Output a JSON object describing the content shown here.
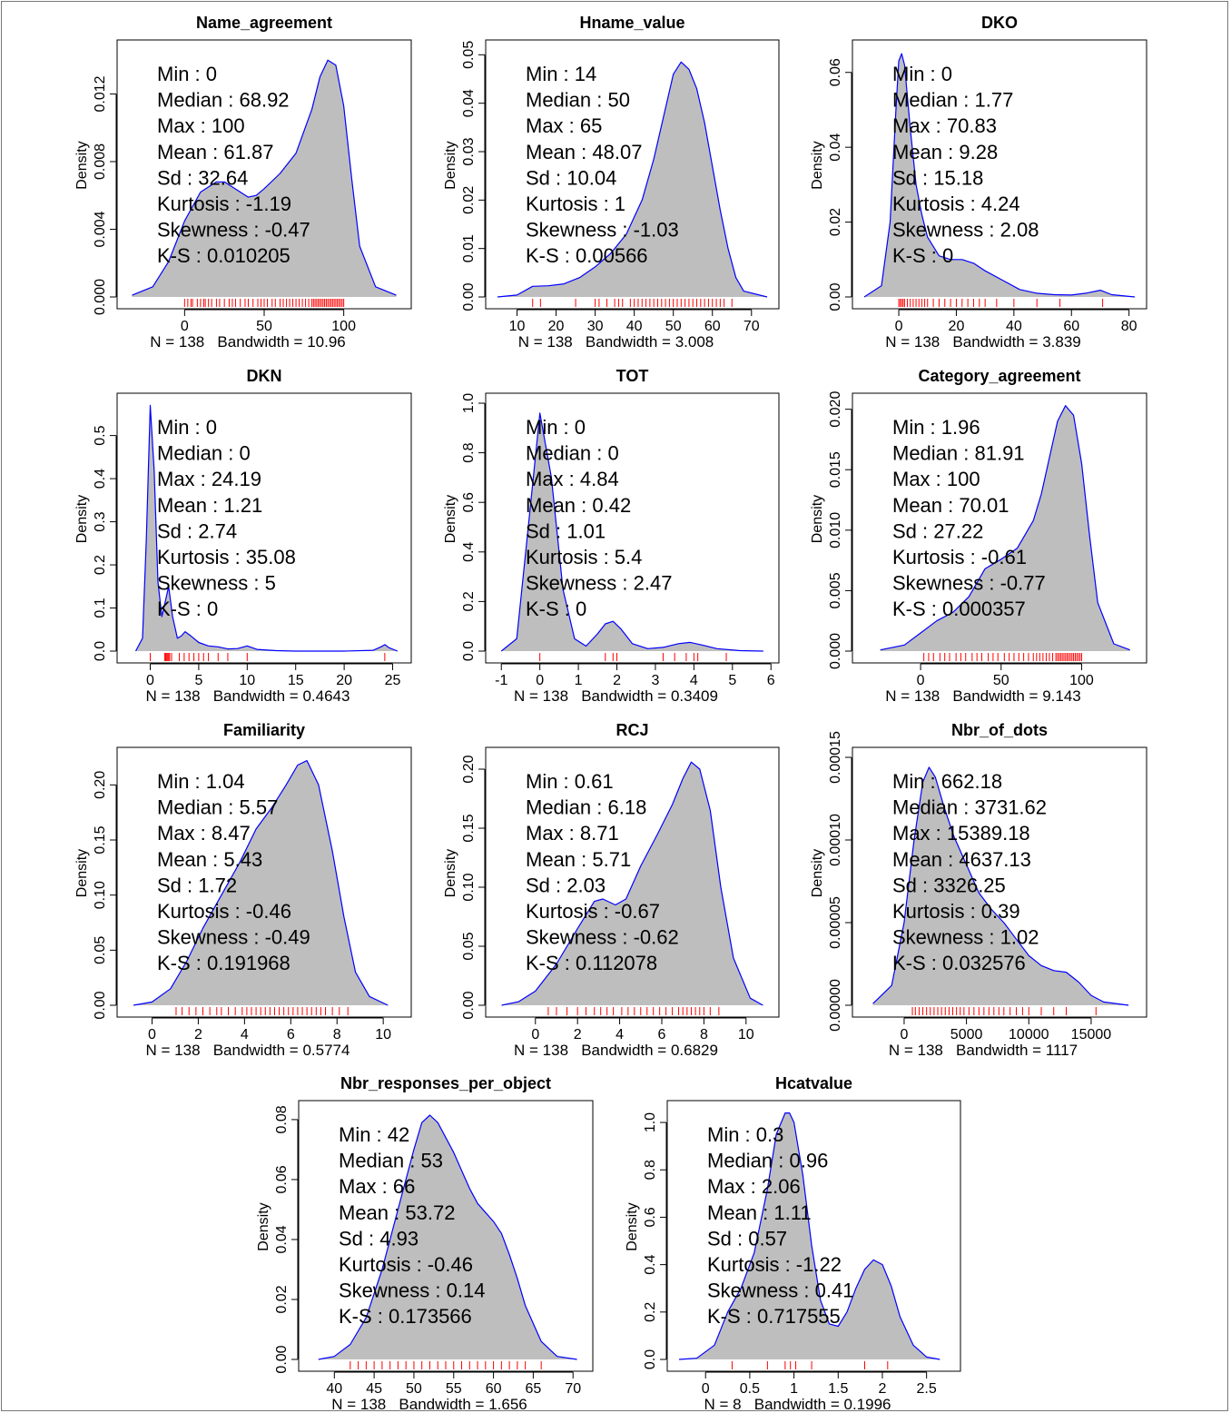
{
  "figure": {
    "ylabel": "Density",
    "stat_labels": [
      "Min",
      "Median",
      "Max",
      "Mean",
      "Sd",
      "Kurtosis",
      "Skewness",
      "K-S"
    ]
  },
  "colors": {
    "fill": "#bebebe",
    "line": "#0000ff",
    "rug": "#ff0000",
    "axis": "#000000"
  },
  "chart_data": [
    {
      "type": "area",
      "title": "Name_agreement",
      "footer": "N = 138   Bandwidth = 10.96",
      "xlim": [
        -35,
        135
      ],
      "ylim": [
        0,
        0.0146
      ],
      "xticks": [
        0,
        50,
        100
      ],
      "yticks": [
        0.0,
        0.004,
        0.008,
        0.012
      ],
      "ytick_labels": [
        "0.000",
        "0.004",
        "0.008",
        "0.012"
      ],
      "stats": [
        "0",
        "68.92",
        "100",
        "61.87",
        "32.64",
        "-1.19",
        "-0.47",
        "0.010205"
      ],
      "x": [
        -33,
        -20,
        -10,
        0,
        10,
        20,
        25,
        30,
        40,
        45,
        50,
        60,
        70,
        80,
        85,
        90,
        95,
        100,
        105,
        110,
        120,
        133
      ],
      "y": [
        0.0001,
        0.0006,
        0.0021,
        0.0045,
        0.0062,
        0.0068,
        0.0068,
        0.0065,
        0.0059,
        0.006,
        0.0064,
        0.0073,
        0.0085,
        0.0111,
        0.013,
        0.014,
        0.0137,
        0.0113,
        0.007,
        0.003,
        0.0006,
        0.0001
      ],
      "rug": [
        0,
        2,
        4,
        5,
        8,
        10,
        12,
        13,
        15,
        17,
        20,
        22,
        25,
        28,
        30,
        32,
        35,
        38,
        40,
        43,
        46,
        48,
        50,
        52,
        55,
        57,
        60,
        62,
        64,
        66,
        68,
        70,
        72,
        74,
        76,
        78,
        80,
        81,
        82,
        83,
        84,
        85,
        86,
        87,
        88,
        89,
        90,
        91,
        92,
        93,
        94,
        95,
        96,
        97,
        98,
        99,
        100
      ]
    },
    {
      "type": "area",
      "title": "Hname_value",
      "footer": "N = 138   Bandwidth = 3.008",
      "xlim": [
        5,
        74
      ],
      "ylim": [
        0,
        0.051
      ],
      "xticks": [
        10,
        20,
        30,
        40,
        50,
        60,
        70
      ],
      "yticks": [
        0.0,
        0.01,
        0.02,
        0.03,
        0.04,
        0.05
      ],
      "ytick_labels": [
        "0.00",
        "0.01",
        "0.02",
        "0.03",
        "0.04",
        "0.05"
      ],
      "stats": [
        "14",
        "50",
        "65",
        "48.07",
        "10.04",
        "1",
        "-1.03",
        "0.00566"
      ],
      "x": [
        5,
        10,
        14,
        18,
        22,
        26,
        30,
        34,
        38,
        42,
        45,
        48,
        50,
        52,
        54,
        56,
        58,
        60,
        62,
        64,
        66,
        68,
        74
      ],
      "y": [
        0.0,
        0.0004,
        0.0022,
        0.0023,
        0.0027,
        0.004,
        0.0062,
        0.009,
        0.013,
        0.02,
        0.0285,
        0.039,
        0.046,
        0.0485,
        0.047,
        0.043,
        0.036,
        0.027,
        0.018,
        0.01,
        0.004,
        0.0012,
        0.0
      ],
      "rug": [
        14,
        16,
        25,
        30,
        31,
        33,
        35,
        36,
        37,
        39,
        40,
        41,
        42,
        43,
        44,
        45,
        46,
        47,
        48,
        49,
        50,
        51,
        52,
        53,
        54,
        55,
        56,
        57,
        58,
        59,
        60,
        61,
        62,
        63,
        65
      ]
    },
    {
      "type": "area",
      "title": "DKO",
      "footer": "N = 138   Bandwidth = 3.839",
      "xlim": [
        -12,
        82
      ],
      "ylim": [
        0,
        0.066
      ],
      "xticks": [
        0,
        20,
        40,
        60,
        80
      ],
      "yticks": [
        0.0,
        0.02,
        0.04,
        0.06
      ],
      "ytick_labels": [
        "0.00",
        "0.02",
        "0.04",
        "0.06"
      ],
      "stats": [
        "0",
        "1.77",
        "70.83",
        "9.28",
        "15.18",
        "4.24",
        "2.08",
        "0"
      ],
      "x": [
        -12,
        -6,
        -3,
        -1,
        0,
        1,
        2,
        4,
        6,
        8,
        10,
        14,
        18,
        22,
        26,
        30,
        36,
        42,
        48,
        54,
        60,
        65,
        70,
        74,
        82
      ],
      "y": [
        0.0,
        0.003,
        0.02,
        0.05,
        0.063,
        0.065,
        0.062,
        0.045,
        0.03,
        0.022,
        0.016,
        0.011,
        0.01,
        0.01,
        0.009,
        0.007,
        0.0045,
        0.002,
        0.001,
        0.0006,
        0.0005,
        0.001,
        0.0018,
        0.0006,
        0.0
      ],
      "rug": [
        0,
        0.5,
        1,
        1.5,
        2,
        3,
        4,
        5,
        6,
        7,
        8,
        9,
        10,
        12,
        14,
        16,
        18,
        20,
        22,
        24,
        26,
        28,
        30,
        34,
        40,
        48,
        56,
        70.83
      ]
    },
    {
      "type": "area",
      "title": "DKN",
      "footer": "N = 138   Bandwidth = 0.4643",
      "xlim": [
        -2.2,
        25.7
      ],
      "ylim": [
        0,
        0.575
      ],
      "xticks": [
        0,
        5,
        10,
        15,
        20,
        25
      ],
      "yticks": [
        0.0,
        0.1,
        0.2,
        0.3,
        0.4,
        0.5
      ],
      "ytick_labels": [
        "0.0",
        "0.1",
        "0.2",
        "0.3",
        "0.4",
        "0.5"
      ],
      "stats": [
        "0",
        "0",
        "24.19",
        "1.21",
        "2.74",
        "35.08",
        "5",
        "0"
      ],
      "x": [
        -1.5,
        -0.8,
        -0.4,
        0,
        0.4,
        0.8,
        1.2,
        1.6,
        1.9,
        2.3,
        2.8,
        3.2,
        3.6,
        4.2,
        5,
        6,
        7,
        8,
        9,
        10,
        11,
        13,
        15,
        20,
        23,
        23.8,
        24.2,
        24.6,
        25.5
      ],
      "y": [
        0.0,
        0.03,
        0.26,
        0.57,
        0.42,
        0.16,
        0.08,
        0.12,
        0.15,
        0.08,
        0.03,
        0.035,
        0.045,
        0.035,
        0.02,
        0.012,
        0.01,
        0.005,
        0.006,
        0.012,
        0.004,
        0.001,
        0.0,
        0.0,
        0.002,
        0.01,
        0.015,
        0.008,
        0.0
      ],
      "rug": [
        0,
        1.5,
        1.6,
        1.7,
        1.8,
        1.9,
        2.0,
        2.2,
        3,
        3.5,
        4,
        4.5,
        5,
        5.5,
        6,
        7,
        8,
        10,
        24.19
      ]
    },
    {
      "type": "area",
      "title": "TOT",
      "footer": "N = 138   Bandwidth = 0.3409",
      "xlim": [
        -1.1,
        5.9
      ],
      "ylim": [
        0,
        1.0
      ],
      "xticks": [
        -1,
        0,
        1,
        2,
        3,
        4,
        5,
        6
      ],
      "yticks": [
        0.0,
        0.2,
        0.4,
        0.6,
        0.8,
        1.0
      ],
      "ytick_labels": [
        "0.0",
        "0.2",
        "0.4",
        "0.6",
        "0.8",
        "1.0"
      ],
      "stats": [
        "0",
        "0",
        "4.84",
        "0.42",
        "1.01",
        "5.4",
        "2.47",
        "0"
      ],
      "x": [
        -1.0,
        -0.6,
        -0.3,
        0,
        0.3,
        0.6,
        0.9,
        1.2,
        1.5,
        1.7,
        1.9,
        2.1,
        2.4,
        2.8,
        3.2,
        3.6,
        3.9,
        4.2,
        4.6,
        5.2,
        5.8
      ],
      "y": [
        0.0,
        0.05,
        0.5,
        0.96,
        0.7,
        0.25,
        0.05,
        0.02,
        0.07,
        0.11,
        0.12,
        0.09,
        0.03,
        0.01,
        0.015,
        0.03,
        0.035,
        0.025,
        0.01,
        0.002,
        0.0
      ],
      "rug": [
        0,
        1.7,
        1.9,
        2.0,
        3.2,
        3.5,
        3.8,
        4.0,
        4.1,
        4.84
      ]
    },
    {
      "type": "area",
      "title": "Category_agreement",
      "footer": "N = 138   Bandwidth = 9.143",
      "xlim": [
        -35,
        133
      ],
      "ylim": [
        0,
        0.0205
      ],
      "xticks": [
        0,
        50,
        100
      ],
      "yticks": [
        0.0,
        0.005,
        0.01,
        0.015,
        0.02
      ],
      "ytick_labels": [
        "0.000",
        "0.005",
        "0.010",
        "0.015",
        "0.020"
      ],
      "stats": [
        "1.96",
        "81.91",
        "100",
        "70.01",
        "27.22",
        "-0.61",
        "-0.77",
        "0.000357"
      ],
      "x": [
        -25,
        -10,
        0,
        10,
        20,
        30,
        40,
        50,
        60,
        70,
        75,
        80,
        85,
        90,
        95,
        100,
        105,
        110,
        120,
        130
      ],
      "y": [
        0.0001,
        0.0005,
        0.0015,
        0.0025,
        0.0032,
        0.0045,
        0.0068,
        0.0076,
        0.0085,
        0.0108,
        0.013,
        0.016,
        0.019,
        0.0203,
        0.0195,
        0.0155,
        0.0095,
        0.004,
        0.0006,
        0.0001
      ],
      "rug": [
        2,
        5,
        8,
        12,
        15,
        18,
        22,
        25,
        28,
        32,
        35,
        38,
        42,
        45,
        48,
        52,
        55,
        58,
        61,
        64,
        67,
        70,
        72,
        74,
        76,
        78,
        80,
        82,
        84,
        85,
        86,
        87,
        88,
        89,
        90,
        91,
        92,
        93,
        94,
        95,
        96,
        97,
        98,
        99,
        100
      ]
    },
    {
      "type": "area",
      "title": "Familiarity",
      "footer": "N = 138   Bandwidth = 0.5774",
      "xlim": [
        -1.0,
        10.7
      ],
      "ylim": [
        0,
        0.225
      ],
      "xticks": [
        0,
        2,
        4,
        6,
        8,
        10
      ],
      "yticks": [
        0.0,
        0.05,
        0.1,
        0.15,
        0.2
      ],
      "ytick_labels": [
        "0.00",
        "0.05",
        "0.10",
        "0.15",
        "0.20"
      ],
      "stats": [
        "1.04",
        "5.57",
        "8.47",
        "5.43",
        "1.72",
        "-0.46",
        "-0.49",
        "0.191968"
      ],
      "x": [
        -0.8,
        0,
        0.8,
        1.5,
        2.2,
        3,
        3.8,
        4.5,
        5.2,
        5.8,
        6.3,
        6.7,
        7.2,
        7.8,
        8.3,
        8.8,
        9.4,
        10.2
      ],
      "y": [
        0.0,
        0.003,
        0.015,
        0.04,
        0.07,
        0.1,
        0.13,
        0.16,
        0.18,
        0.2,
        0.218,
        0.222,
        0.2,
        0.14,
        0.08,
        0.03,
        0.008,
        0.0
      ],
      "rug": [
        1.04,
        1.3,
        1.6,
        1.9,
        2.2,
        2.5,
        2.8,
        3.0,
        3.3,
        3.6,
        3.9,
        4.1,
        4.3,
        4.5,
        4.7,
        4.9,
        5.1,
        5.3,
        5.5,
        5.7,
        5.9,
        6.1,
        6.3,
        6.5,
        6.7,
        6.9,
        7.1,
        7.3,
        7.5,
        7.8,
        8.1,
        8.47
      ]
    },
    {
      "type": "area",
      "title": "RCJ",
      "footer": "N = 138   Bandwidth = 0.6829",
      "xlim": [
        -1.8,
        11.0
      ],
      "ylim": [
        0,
        0.21
      ],
      "xticks": [
        0,
        2,
        4,
        6,
        8,
        10
      ],
      "yticks": [
        0.0,
        0.05,
        0.1,
        0.15,
        0.2
      ],
      "ytick_labels": [
        "0.00",
        "0.05",
        "0.10",
        "0.15",
        "0.20"
      ],
      "stats": [
        "0.61",
        "6.18",
        "8.71",
        "5.71",
        "2.03",
        "-0.67",
        "-0.62",
        "0.112078"
      ],
      "x": [
        -1.6,
        -0.8,
        0,
        1,
        2,
        2.8,
        3.2,
        3.8,
        4.3,
        5,
        5.8,
        6.5,
        7.0,
        7.4,
        7.8,
        8.3,
        8.8,
        9.4,
        10.2,
        10.8
      ],
      "y": [
        0.0,
        0.003,
        0.012,
        0.035,
        0.065,
        0.088,
        0.09,
        0.085,
        0.09,
        0.118,
        0.145,
        0.17,
        0.192,
        0.206,
        0.2,
        0.165,
        0.1,
        0.04,
        0.006,
        0.0
      ],
      "rug": [
        0.61,
        1,
        1.5,
        2,
        2.4,
        2.8,
        3.1,
        3.4,
        3.7,
        4.1,
        4.4,
        4.7,
        5.0,
        5.3,
        5.6,
        5.9,
        6.2,
        6.5,
        6.8,
        7.0,
        7.2,
        7.4,
        7.6,
        7.8,
        8.0,
        8.3,
        8.71
      ]
    },
    {
      "type": "area",
      "title": "Nbr_of_dots",
      "footer": "N = 138   Bandwidth = 1117",
      "xlim": [
        -3200,
        18500
      ],
      "ylim": [
        0,
        0.00015
      ],
      "xticks": [
        0,
        5000,
        10000,
        15000
      ],
      "yticks": [
        0,
        5e-05,
        0.0001,
        0.00015
      ],
      "ytick_labels": [
        "0.00000",
        "0.00005",
        "0.00010",
        "0.00015"
      ],
      "stats": [
        "662.18",
        "3731.62",
        "15389.18",
        "4637.13",
        "3326.25",
        "0.39",
        "1.02",
        "0.032576"
      ],
      "x": [
        -2500,
        -1000,
        0,
        800,
        1500,
        2000,
        2500,
        3200,
        4000,
        5000,
        6000,
        7000,
        8000,
        9000,
        10000,
        11000,
        12000,
        13000,
        14000,
        15000,
        16000,
        18000
      ],
      "y": [
        1e-06,
        1.2e-05,
        5e-05,
        0.0001,
        0.000135,
        0.000144,
        0.000138,
        0.00012,
        0.000102,
        8.5e-05,
        6.8e-05,
        5.8e-05,
        5e-05,
        4e-05,
        3e-05,
        2.4e-05,
        2.1e-05,
        2e-05,
        1.4e-05,
        6e-06,
        2e-06,
        0.0
      ],
      "rug": [
        662,
        900,
        1200,
        1500,
        1800,
        2100,
        2400,
        2700,
        3000,
        3300,
        3600,
        3900,
        4200,
        4500,
        4800,
        5200,
        5600,
        6000,
        6400,
        6800,
        7200,
        7600,
        8000,
        8500,
        9000,
        9500,
        10000,
        11000,
        12000,
        13000,
        15389
      ]
    },
    {
      "type": "area",
      "title": "Nbr_responses_per_object",
      "footer": "N = 138   Bandwidth = 1.656",
      "xlim": [
        37,
        71
      ],
      "ylim": [
        0,
        0.083
      ],
      "xticks": [
        40,
        45,
        50,
        55,
        60,
        65,
        70
      ],
      "yticks": [
        0.0,
        0.02,
        0.04,
        0.06,
        0.08
      ],
      "ytick_labels": [
        "0.00",
        "0.02",
        "0.04",
        "0.06",
        "0.08"
      ],
      "stats": [
        "42",
        "53",
        "66",
        "53.72",
        "4.93",
        "-0.46",
        "0.14",
        "0.173566"
      ],
      "x": [
        38,
        40,
        42,
        44,
        46,
        48,
        50,
        51,
        52,
        53,
        54,
        55,
        56,
        57,
        58,
        59,
        60,
        61,
        62,
        63,
        64,
        66,
        68,
        70.5
      ],
      "y": [
        0.0,
        0.001,
        0.005,
        0.014,
        0.03,
        0.05,
        0.07,
        0.079,
        0.0815,
        0.079,
        0.074,
        0.069,
        0.063,
        0.057,
        0.052,
        0.049,
        0.046,
        0.042,
        0.035,
        0.027,
        0.018,
        0.006,
        0.001,
        0.0
      ],
      "rug": [
        42,
        43,
        44,
        45,
        46,
        47,
        48,
        49,
        50,
        51,
        52,
        53,
        54,
        55,
        56,
        57,
        58,
        59,
        60,
        61,
        62,
        63,
        64,
        66
      ]
    },
    {
      "type": "area",
      "title": "Hcatvalue",
      "footer": "N = 8   Bandwidth = 0.1996",
      "xlim": [
        -0.3,
        2.75
      ],
      "ylim": [
        0,
        1.05
      ],
      "xticks": [
        0.0,
        0.5,
        1.0,
        1.5,
        2.0,
        2.5
      ],
      "yticks": [
        0.0,
        0.2,
        0.4,
        0.6,
        0.8,
        1.0
      ],
      "ytick_labels": [
        "0.0",
        "0.2",
        "0.4",
        "0.6",
        "0.8",
        "1.0"
      ],
      "stats": [
        "0.3",
        "0.96",
        "2.06",
        "1.11",
        "0.57",
        "-1.22",
        "0.41",
        "0.717555"
      ],
      "x": [
        -0.3,
        -0.1,
        0.1,
        0.25,
        0.4,
        0.55,
        0.7,
        0.8,
        0.9,
        0.95,
        1.0,
        1.1,
        1.2,
        1.3,
        1.4,
        1.5,
        1.6,
        1.7,
        1.8,
        1.9,
        2.0,
        2.1,
        2.2,
        2.35,
        2.5,
        2.65
      ],
      "y": [
        0.0,
        0.005,
        0.06,
        0.2,
        0.3,
        0.45,
        0.72,
        0.95,
        1.04,
        1.04,
        1.0,
        0.78,
        0.48,
        0.25,
        0.15,
        0.14,
        0.2,
        0.3,
        0.38,
        0.42,
        0.4,
        0.31,
        0.18,
        0.06,
        0.01,
        0.0
      ],
      "rug": [
        0.3,
        0.7,
        0.9,
        0.96,
        1.02,
        1.2,
        1.8,
        2.06
      ]
    }
  ]
}
